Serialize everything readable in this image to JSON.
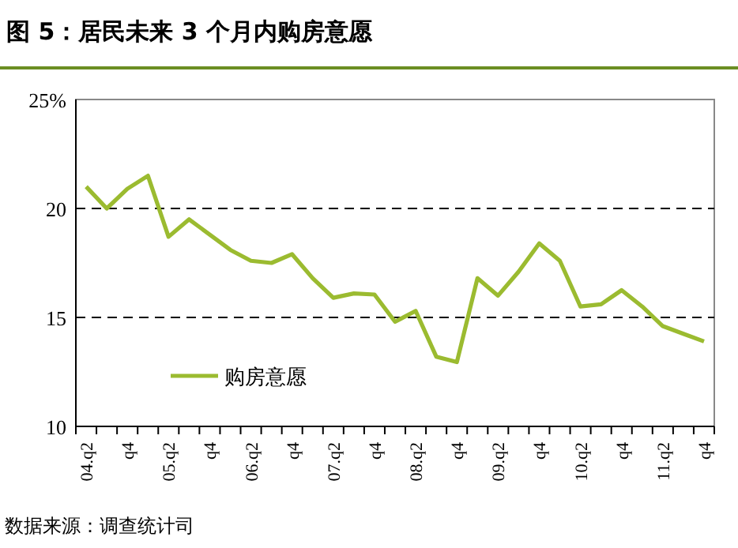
{
  "chart_data": {
    "type": "line",
    "title": "图 5：居民未来 3 个月内购房意愿",
    "annotations": [
      "数据来源：调查统计司"
    ],
    "categories": [
      "04.q2",
      null,
      "q4",
      null,
      "05.q2",
      null,
      "q4",
      null,
      "06.q2",
      null,
      "q4",
      null,
      "07.q2",
      null,
      "q4",
      null,
      "08.q2",
      null,
      "q4",
      null,
      "09.q2",
      null,
      "q4",
      null,
      "10.q2",
      null,
      "q4",
      null,
      "11.q2",
      null,
      "q4"
    ],
    "series": [
      {
        "name": "购房意愿",
        "color": "#9bbb30",
        "values": [
          21.0,
          20.0,
          20.9,
          21.5,
          18.7,
          19.5,
          18.8,
          18.1,
          17.6,
          17.5,
          17.9,
          16.8,
          15.9,
          16.1,
          16.05,
          14.8,
          15.3,
          13.2,
          12.95,
          16.8,
          16.0,
          17.1,
          18.4,
          17.6,
          15.5,
          15.6,
          16.25,
          15.5,
          14.6,
          14.25,
          13.9
        ]
      }
    ],
    "ylim": [
      10,
      25
    ],
    "yticks": [
      10,
      15,
      20,
      {
        "value": 25,
        "label": "25%"
      }
    ],
    "grid": "y",
    "legend": "bottom left",
    "marker": "none",
    "line_style": "solid"
  }
}
